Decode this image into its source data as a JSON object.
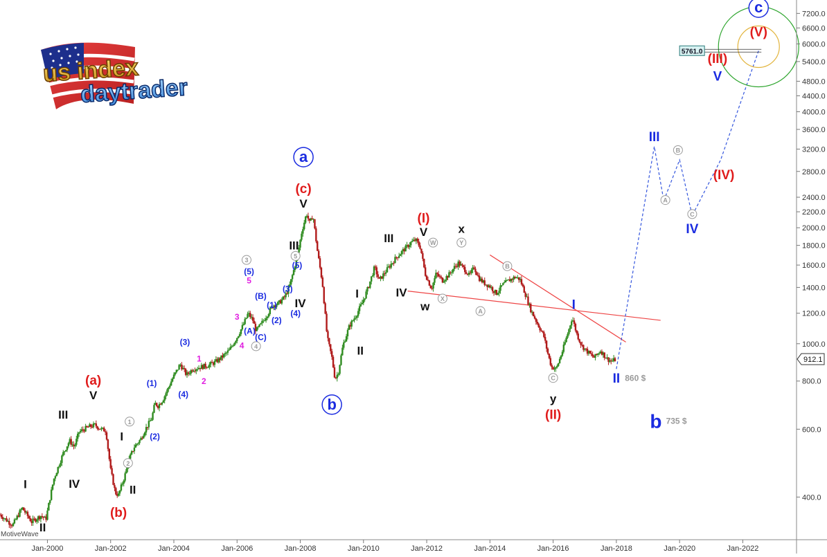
{
  "watermark": "MotiveWave",
  "logo": {
    "line1": "us index",
    "line2": "daytrader"
  },
  "price_box": "5761.0",
  "last_price": "912.1",
  "colors": {
    "up": "#2e8b1f",
    "down": "#b01a1a",
    "red": "#e01b1b",
    "blue": "#1a2be0",
    "black": "#111111",
    "grey": "#9a9a9a",
    "magenta": "#e020e0",
    "trend": "#ee4444",
    "projection": "#3355dd",
    "ring_outer": "#2ea52e",
    "ring_inner": "#e2b43c",
    "circle_a": "#1a2be0"
  },
  "chart_data": {
    "type": "candlestick",
    "y_scale": "log",
    "ylim": [
      310,
      7800
    ],
    "y_ticks": [
      {
        "v": 400,
        "label": "400.0"
      },
      {
        "v": 600,
        "label": "600.0"
      },
      {
        "v": 800,
        "label": "800.0"
      },
      {
        "v": 1000,
        "label": "1000.0"
      },
      {
        "v": 1200,
        "label": "1200.0"
      },
      {
        "v": 1400,
        "label": "1400.0"
      },
      {
        "v": 1600,
        "label": "1600.0"
      },
      {
        "v": 1800,
        "label": "1800.0"
      },
      {
        "v": 2000,
        "label": "2000.0"
      },
      {
        "v": 2200,
        "label": "2200.0"
      },
      {
        "v": 2400,
        "label": "2400.0"
      },
      {
        "v": 2800,
        "label": "2800.0"
      },
      {
        "v": 3200,
        "label": "3200.0"
      },
      {
        "v": 3600,
        "label": "3600.0"
      },
      {
        "v": 4000,
        "label": "4000.0"
      },
      {
        "v": 4400,
        "label": "4400.0"
      },
      {
        "v": 4800,
        "label": "4800.0"
      },
      {
        "v": 5400,
        "label": "5400.0"
      },
      {
        "v": 6000,
        "label": "6000.0"
      },
      {
        "v": 6600,
        "label": "6600.0"
      },
      {
        "v": 7200,
        "label": "7200.0"
      }
    ],
    "xlim": [
      1998.5,
      2023.7
    ],
    "x_ticks": [
      {
        "v": 2000,
        "label": "Jan-2000"
      },
      {
        "v": 2002,
        "label": "Jan-2002"
      },
      {
        "v": 2004,
        "label": "Jan-2004"
      },
      {
        "v": 2006,
        "label": "Jan-2006"
      },
      {
        "v": 2008,
        "label": "Jan-2008"
      },
      {
        "v": 2010,
        "label": "Jan-2010"
      },
      {
        "v": 2012,
        "label": "Jan-2012"
      },
      {
        "v": 2014,
        "label": "Jan-2014"
      },
      {
        "v": 2016,
        "label": "Jan-2016"
      },
      {
        "v": 2018,
        "label": "Jan-2018"
      },
      {
        "v": 2020,
        "label": "Jan-2020"
      },
      {
        "v": 2022,
        "label": "Jan-2022"
      }
    ],
    "price_path": [
      [
        1998.5,
        360
      ],
      [
        1998.9,
        338
      ],
      [
        1999.2,
        375
      ],
      [
        1999.5,
        345
      ],
      [
        1999.8,
        358
      ],
      [
        1999.95,
        350
      ],
      [
        2000.2,
        445
      ],
      [
        2000.5,
        520
      ],
      [
        2000.7,
        560
      ],
      [
        2000.85,
        540
      ],
      [
        2001.0,
        590
      ],
      [
        2001.3,
        608
      ],
      [
        2001.5,
        615
      ],
      [
        2001.7,
        600
      ],
      [
        2001.85,
        595
      ],
      [
        2002.0,
        470
      ],
      [
        2002.15,
        410
      ],
      [
        2002.25,
        405
      ],
      [
        2002.45,
        455
      ],
      [
        2002.6,
        505
      ],
      [
        2002.75,
        540
      ],
      [
        2002.95,
        565
      ],
      [
        2003.1,
        600
      ],
      [
        2003.3,
        640
      ],
      [
        2003.4,
        700
      ],
      [
        2003.5,
        690
      ],
      [
        2003.65,
        715
      ],
      [
        2003.8,
        760
      ],
      [
        2003.95,
        810
      ],
      [
        2004.2,
        885
      ],
      [
        2004.4,
        830
      ],
      [
        2004.6,
        860
      ],
      [
        2004.85,
        870
      ],
      [
        2005.1,
        880
      ],
      [
        2005.3,
        895
      ],
      [
        2005.5,
        920
      ],
      [
        2005.75,
        960
      ],
      [
        2006.0,
        1040
      ],
      [
        2006.2,
        1120
      ],
      [
        2006.35,
        1200
      ],
      [
        2006.5,
        1150
      ],
      [
        2006.6,
        1080
      ],
      [
        2006.75,
        1120
      ],
      [
        2006.95,
        1190
      ],
      [
        2007.15,
        1260
      ],
      [
        2007.3,
        1270
      ],
      [
        2007.5,
        1320
      ],
      [
        2007.65,
        1400
      ],
      [
        2007.8,
        1560
      ],
      [
        2007.95,
        1760
      ],
      [
        2008.05,
        1960
      ],
      [
        2008.2,
        2180
      ],
      [
        2008.3,
        2050
      ],
      [
        2008.4,
        2160
      ],
      [
        2008.55,
        1720
      ],
      [
        2008.7,
        1440
      ],
      [
        2008.85,
        1040
      ],
      [
        2009.0,
        920
      ],
      [
        2009.1,
        810
      ],
      [
        2009.2,
        840
      ],
      [
        2009.35,
        990
      ],
      [
        2009.55,
        1110
      ],
      [
        2009.75,
        1180
      ],
      [
        2009.95,
        1270
      ],
      [
        2010.15,
        1400
      ],
      [
        2010.35,
        1580
      ],
      [
        2010.5,
        1460
      ],
      [
        2010.65,
        1520
      ],
      [
        2010.85,
        1600
      ],
      [
        2011.05,
        1680
      ],
      [
        2011.3,
        1760
      ],
      [
        2011.5,
        1830
      ],
      [
        2011.65,
        1860
      ],
      [
        2011.8,
        1780
      ],
      [
        2011.95,
        1520
      ],
      [
        2012.15,
        1390
      ],
      [
        2012.3,
        1520
      ],
      [
        2012.5,
        1460
      ],
      [
        2012.7,
        1510
      ],
      [
        2012.85,
        1570
      ],
      [
        2013.0,
        1620
      ],
      [
        2013.2,
        1560
      ],
      [
        2013.35,
        1500
      ],
      [
        2013.5,
        1580
      ],
      [
        2013.65,
        1480
      ],
      [
        2013.8,
        1440
      ],
      [
        2014.0,
        1410
      ],
      [
        2014.2,
        1350
      ],
      [
        2014.4,
        1420
      ],
      [
        2014.6,
        1460
      ],
      [
        2014.8,
        1490
      ],
      [
        2014.95,
        1470
      ],
      [
        2015.1,
        1360
      ],
      [
        2015.3,
        1220
      ],
      [
        2015.5,
        1130
      ],
      [
        2015.7,
        1050
      ],
      [
        2015.85,
        930
      ],
      [
        2015.95,
        870
      ],
      [
        2016.1,
        860
      ],
      [
        2016.3,
        960
      ],
      [
        2016.5,
        1090
      ],
      [
        2016.6,
        1170
      ],
      [
        2016.75,
        1060
      ],
      [
        2016.9,
        990
      ],
      [
        2017.1,
        950
      ],
      [
        2017.3,
        920
      ],
      [
        2017.5,
        960
      ],
      [
        2017.7,
        915
      ],
      [
        2017.85,
        900
      ],
      [
        2018.0,
        912
      ]
    ],
    "projection_path": [
      [
        2018.0,
        860
      ],
      [
        2019.2,
        3250
      ],
      [
        2019.5,
        2350
      ],
      [
        2020.0,
        3000
      ],
      [
        2020.4,
        2150
      ],
      [
        2021.3,
        3000
      ],
      [
        2022.5,
        5761
      ]
    ],
    "trendlines": [
      {
        "from": [
          2011.4,
          1370
        ],
        "to": [
          2019.4,
          1150
        ]
      },
      {
        "from": [
          2014.0,
          1700
        ],
        "to": [
          2018.3,
          1010
        ]
      }
    ],
    "price_box_value": 5761,
    "last_value": 912.1,
    "target_circle": {
      "x": 2022.5,
      "y": 5900
    },
    "labels": [
      {
        "t": "I",
        "x": 1999.3,
        "y": 432,
        "c": "black",
        "s": 17,
        "w": "bold"
      },
      {
        "t": "II",
        "x": 1999.85,
        "y": 334,
        "c": "black",
        "s": 17,
        "w": "bold"
      },
      {
        "t": "III",
        "x": 2000.5,
        "y": 655,
        "c": "black",
        "s": 17,
        "w": "bold"
      },
      {
        "t": "IV",
        "x": 2000.85,
        "y": 433,
        "c": "black",
        "s": 17,
        "w": "bold"
      },
      {
        "t": "V",
        "x": 2001.45,
        "y": 735,
        "c": "black",
        "s": 17,
        "w": "bold"
      },
      {
        "t": "(a)",
        "x": 2001.45,
        "y": 805,
        "c": "red",
        "s": 19,
        "w": "bold"
      },
      {
        "t": "(b)",
        "x": 2002.25,
        "y": 365,
        "c": "red",
        "s": 19,
        "w": "bold"
      },
      {
        "t": "I",
        "x": 2002.35,
        "y": 575,
        "c": "black",
        "s": 17,
        "w": "bold"
      },
      {
        "t": "II",
        "x": 2002.7,
        "y": 418,
        "c": "black",
        "s": 17,
        "w": "bold"
      },
      {
        "t": "(1)",
        "x": 2003.3,
        "y": 790,
        "c": "blue",
        "s": 12,
        "w": "bold"
      },
      {
        "t": "(2)",
        "x": 2003.4,
        "y": 575,
        "c": "blue",
        "s": 12,
        "w": "bold"
      },
      {
        "t": "(3)",
        "x": 2004.35,
        "y": 1010,
        "c": "blue",
        "s": 12,
        "w": "bold"
      },
      {
        "t": "(4)",
        "x": 2004.3,
        "y": 740,
        "c": "blue",
        "s": 12,
        "w": "bold"
      },
      {
        "t": "1",
        "x": 2004.8,
        "y": 915,
        "c": "magenta",
        "s": 12,
        "w": "bold"
      },
      {
        "t": "2",
        "x": 2004.95,
        "y": 800,
        "c": "magenta",
        "s": 12,
        "w": "bold"
      },
      {
        "t": "3",
        "x": 2006.0,
        "y": 1175,
        "c": "magenta",
        "s": 12,
        "w": "bold"
      },
      {
        "t": "4",
        "x": 2006.15,
        "y": 990,
        "c": "magenta",
        "s": 12,
        "w": "bold"
      },
      {
        "t": "5",
        "x": 2006.38,
        "y": 1460,
        "c": "magenta",
        "s": 12,
        "w": "bold"
      },
      {
        "t": "(5)",
        "x": 2006.38,
        "y": 1540,
        "c": "blue",
        "s": 12,
        "w": "bold"
      },
      {
        "t": "(A)",
        "x": 2006.4,
        "y": 1080,
        "c": "blue",
        "s": 12,
        "w": "bold"
      },
      {
        "t": "(B)",
        "x": 2006.75,
        "y": 1330,
        "c": "blue",
        "s": 12,
        "w": "bold"
      },
      {
        "t": "(C)",
        "x": 2006.75,
        "y": 1040,
        "c": "blue",
        "s": 12,
        "w": "bold"
      },
      {
        "t": "(1)",
        "x": 2007.1,
        "y": 1260,
        "c": "blue",
        "s": 12,
        "w": "bold"
      },
      {
        "t": "(2)",
        "x": 2007.25,
        "y": 1150,
        "c": "blue",
        "s": 12,
        "w": "bold"
      },
      {
        "t": "(3)",
        "x": 2007.6,
        "y": 1390,
        "c": "blue",
        "s": 12,
        "w": "bold"
      },
      {
        "t": "(4)",
        "x": 2007.85,
        "y": 1200,
        "c": "blue",
        "s": 12,
        "w": "bold"
      },
      {
        "t": "(5)",
        "x": 2007.9,
        "y": 1600,
        "c": "blue",
        "s": 12,
        "w": "bold"
      },
      {
        "t": "III",
        "x": 2007.8,
        "y": 1800,
        "c": "black",
        "s": 17,
        "w": "bold"
      },
      {
        "t": "IV",
        "x": 2008.0,
        "y": 1275,
        "c": "black",
        "s": 17,
        "w": "bold"
      },
      {
        "t": "V",
        "x": 2008.1,
        "y": 2310,
        "c": "black",
        "s": 17,
        "w": "bold"
      },
      {
        "t": "(c)",
        "x": 2008.1,
        "y": 2530,
        "c": "red",
        "s": 19,
        "w": "bold"
      },
      {
        "t": "I",
        "x": 2009.8,
        "y": 1350,
        "c": "black",
        "s": 17,
        "w": "bold"
      },
      {
        "t": "II",
        "x": 2009.9,
        "y": 960,
        "c": "black",
        "s": 17,
        "w": "bold"
      },
      {
        "t": "III",
        "x": 2010.8,
        "y": 1880,
        "c": "black",
        "s": 17,
        "w": "bold"
      },
      {
        "t": "IV",
        "x": 2011.2,
        "y": 1360,
        "c": "black",
        "s": 17,
        "w": "bold"
      },
      {
        "t": "V",
        "x": 2011.9,
        "y": 1950,
        "c": "black",
        "s": 17,
        "w": "bold"
      },
      {
        "t": "(I)",
        "x": 2011.9,
        "y": 2120,
        "c": "red",
        "s": 19,
        "w": "bold"
      },
      {
        "t": "w",
        "x": 2011.95,
        "y": 1250,
        "c": "black",
        "s": 17,
        "w": "bold"
      },
      {
        "t": "x",
        "x": 2013.1,
        "y": 1990,
        "c": "black",
        "s": 17,
        "w": "bold"
      },
      {
        "t": "y",
        "x": 2016.0,
        "y": 720,
        "c": "black",
        "s": 17,
        "w": "bold"
      },
      {
        "t": "(II)",
        "x": 2016.0,
        "y": 655,
        "c": "red",
        "s": 19,
        "w": "bold"
      },
      {
        "t": "I",
        "x": 2016.65,
        "y": 1265,
        "c": "blue",
        "s": 19,
        "w": "bold"
      },
      {
        "t": "II",
        "x": 2018.0,
        "y": 815,
        "c": "blue",
        "s": 19,
        "w": "bold"
      },
      {
        "t": "860 $",
        "x": 2018.6,
        "y": 815,
        "c": "grey",
        "s": 12,
        "w": "bold"
      },
      {
        "t": "b",
        "x": 2019.25,
        "y": 630,
        "c": "blue",
        "s": 28,
        "w": "bold"
      },
      {
        "t": "735 $",
        "x": 2019.9,
        "y": 630,
        "c": "grey",
        "s": 12,
        "w": "bold"
      },
      {
        "t": "III",
        "x": 2019.2,
        "y": 3450,
        "c": "blue",
        "s": 19,
        "w": "bold"
      },
      {
        "t": "IV",
        "x": 2020.4,
        "y": 1990,
        "c": "blue",
        "s": 19,
        "w": "bold"
      },
      {
        "t": "(IV)",
        "x": 2021.4,
        "y": 2750,
        "c": "red",
        "s": 19,
        "w": "bold"
      },
      {
        "t": "V",
        "x": 2021.2,
        "y": 4950,
        "c": "blue",
        "s": 19,
        "w": "bold"
      },
      {
        "t": "(III)",
        "x": 2021.2,
        "y": 5500,
        "c": "red",
        "s": 19,
        "w": "bold"
      },
      {
        "t": "(V)",
        "x": 2022.5,
        "y": 6450,
        "c": "red",
        "s": 19,
        "w": "bold"
      }
    ],
    "circled_labels": [
      {
        "t": "a",
        "x": 2008.1,
        "y": 3050,
        "c": "blue",
        "size": "big"
      },
      {
        "t": "b",
        "x": 2009.0,
        "y": 695,
        "c": "blue",
        "size": "big"
      },
      {
        "t": "c",
        "x": 2022.5,
        "y": 7450,
        "c": "blue",
        "size": "big"
      },
      {
        "t": "1",
        "x": 2002.6,
        "y": 628,
        "c": "grey",
        "size": "small"
      },
      {
        "t": "2",
        "x": 2002.55,
        "y": 490,
        "c": "grey",
        "size": "small"
      },
      {
        "t": "3",
        "x": 2006.3,
        "y": 1650,
        "c": "grey",
        "size": "small"
      },
      {
        "t": "4",
        "x": 2006.6,
        "y": 985,
        "c": "grey",
        "size": "small"
      },
      {
        "t": "5",
        "x": 2007.85,
        "y": 1690,
        "c": "grey",
        "size": "small"
      },
      {
        "t": "W",
        "x": 2012.2,
        "y": 1830,
        "c": "grey",
        "size": "small"
      },
      {
        "t": "X",
        "x": 2012.5,
        "y": 1310,
        "c": "grey",
        "size": "small"
      },
      {
        "t": "Y",
        "x": 2013.1,
        "y": 1830,
        "c": "grey",
        "size": "small"
      },
      {
        "t": "A",
        "x": 2013.7,
        "y": 1215,
        "c": "grey",
        "size": "small"
      },
      {
        "t": "B",
        "x": 2014.55,
        "y": 1590,
        "c": "grey",
        "size": "small"
      },
      {
        "t": "C",
        "x": 2016.0,
        "y": 815,
        "c": "grey",
        "size": "small"
      },
      {
        "t": "A",
        "x": 2019.55,
        "y": 2360,
        "c": "grey",
        "size": "small"
      },
      {
        "t": "B",
        "x": 2019.95,
        "y": 3180,
        "c": "grey",
        "size": "small"
      },
      {
        "t": "C",
        "x": 2020.4,
        "y": 2170,
        "c": "grey",
        "size": "small"
      }
    ]
  }
}
